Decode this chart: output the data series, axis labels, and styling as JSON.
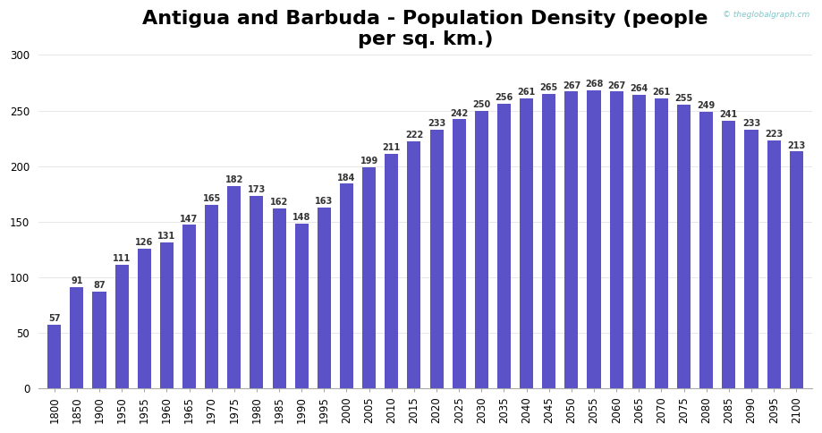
{
  "title": "Antigua and Barbuda - Population Density (people\nper sq. km.)",
  "categories": [
    1800,
    1850,
    1900,
    1950,
    1955,
    1960,
    1965,
    1970,
    1975,
    1980,
    1985,
    1990,
    1995,
    2000,
    2005,
    2010,
    2015,
    2020,
    2025,
    2030,
    2035,
    2040,
    2045,
    2050,
    2055,
    2060,
    2065,
    2070,
    2075,
    2080,
    2085,
    2090,
    2095,
    2100
  ],
  "values": [
    57,
    91,
    87,
    111,
    126,
    131,
    147,
    165,
    182,
    173,
    162,
    148,
    163,
    184,
    199,
    211,
    222,
    233,
    242,
    250,
    256,
    261,
    265,
    267,
    268,
    267,
    264,
    261,
    255,
    249,
    241,
    233,
    223,
    213
  ],
  "bar_color": "#5b52c8",
  "background_color": "#ffffff",
  "ylim": [
    0,
    300
  ],
  "yticks": [
    0,
    50,
    100,
    150,
    200,
    250,
    300
  ],
  "label_fontsize": 7.0,
  "title_fontsize": 16,
  "watermark": "© theglobalgraph.cm",
  "watermark_color": "#7ec8c8",
  "label_color": "#333333",
  "tick_fontsize": 8.5
}
